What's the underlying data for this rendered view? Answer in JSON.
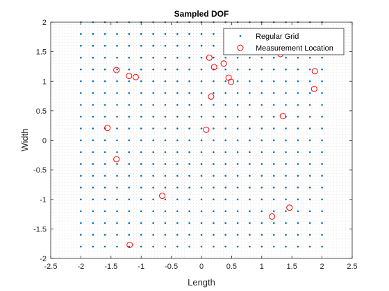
{
  "chart_data": {
    "type": "scatter",
    "title": "Sampled DOF",
    "xlabel": "Length",
    "ylabel": "Width",
    "xlim": [
      -2.5,
      2.5
    ],
    "ylim": [
      -2,
      2
    ],
    "xticks": [
      -2.5,
      -2,
      -1.5,
      -1,
      -0.5,
      0,
      0.5,
      1,
      1.5,
      2,
      2.5
    ],
    "yticks": [
      -2,
      -1.5,
      -1,
      -0.5,
      0,
      0.5,
      1,
      1.5,
      2
    ],
    "xtick_labels": [
      "-2.5",
      "-2",
      "-1.5",
      "-1",
      "-0.5",
      "0",
      "0.5",
      "1",
      "1.5",
      "2",
      "2.5"
    ],
    "ytick_labels": [
      "-2",
      "-1.5",
      "-1",
      "-0.5",
      "0",
      "0.5",
      "1",
      "1.5",
      "2"
    ],
    "grid": false,
    "legend_position": "top-right",
    "series": [
      {
        "name": "Regular Grid",
        "marker": "dot",
        "color": "#0072BD",
        "grid_x": {
          "start": -2,
          "stop": 2,
          "count": 21
        },
        "grid_y": {
          "start": -1.8,
          "stop": 2,
          "count": 20
        }
      },
      {
        "name": "Measurement Location",
        "marker": "circle",
        "color": "#FF0000",
        "points": [
          [
            -1.41,
            1.19
          ],
          [
            -1.2,
            1.09
          ],
          [
            -1.09,
            1.07
          ],
          [
            -1.56,
            0.21
          ],
          [
            -1.41,
            -0.32
          ],
          [
            -0.65,
            -0.94
          ],
          [
            -1.19,
            -1.77
          ],
          [
            0.13,
            1.4
          ],
          [
            0.21,
            1.24
          ],
          [
            0.37,
            1.3
          ],
          [
            0.45,
            1.06
          ],
          [
            0.49,
            0.99
          ],
          [
            0.16,
            0.74
          ],
          [
            0.08,
            0.18
          ],
          [
            1.31,
            1.46
          ],
          [
            1.88,
            1.17
          ],
          [
            1.87,
            0.87
          ],
          [
            1.35,
            0.41
          ],
          [
            1.17,
            -1.29
          ],
          [
            1.46,
            -1.14
          ]
        ]
      }
    ]
  }
}
